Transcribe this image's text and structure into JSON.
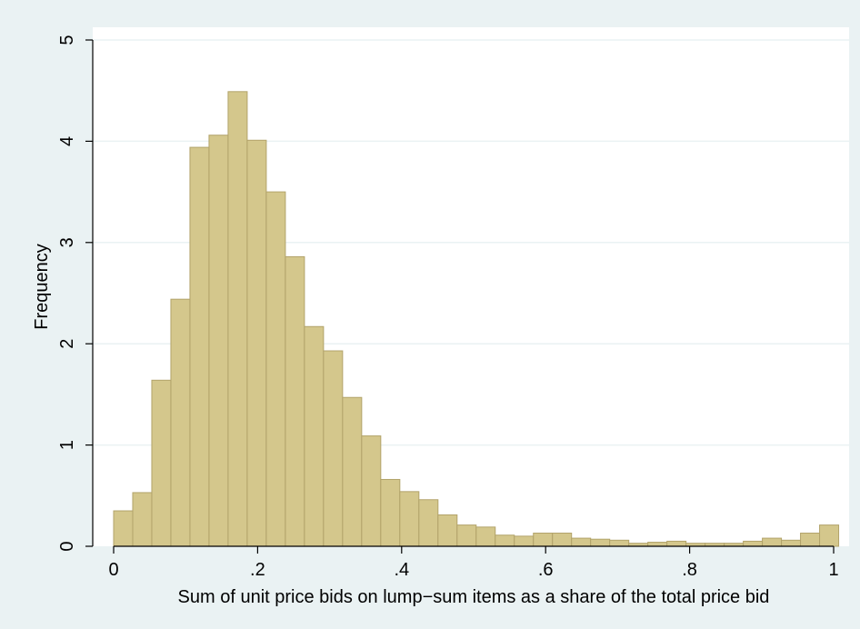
{
  "colors": {
    "page_background": "#eaf2f3",
    "plot_background": "#ffffff",
    "bar_fill": "#d4c78c",
    "bar_stroke": "#b2a36a",
    "gridline": "#eaf2f3",
    "axis": "#000000"
  },
  "chart_data": {
    "type": "bar",
    "subtype": "histogram",
    "title": "",
    "xlabel": "Sum of unit price bids on lump−sum items as a share of the total price bid",
    "ylabel": "Frequency",
    "xlim": [
      0,
      1
    ],
    "ylim": [
      0,
      5
    ],
    "grid": true,
    "legend": "none",
    "x_ticks": [
      {
        "value": 0,
        "label": "0"
      },
      {
        "value": 0.2,
        "label": ".2"
      },
      {
        "value": 0.4,
        "label": ".4"
      },
      {
        "value": 0.6,
        "label": ".6"
      },
      {
        "value": 0.8,
        "label": ".8"
      },
      {
        "value": 1,
        "label": "1"
      }
    ],
    "y_ticks": [
      {
        "value": 0,
        "label": "0"
      },
      {
        "value": 1,
        "label": "1"
      },
      {
        "value": 2,
        "label": "2"
      },
      {
        "value": 3,
        "label": "3"
      },
      {
        "value": 4,
        "label": "4"
      },
      {
        "value": 5,
        "label": "5"
      }
    ],
    "bin_width": 0.0265,
    "bin_start": 0,
    "values": [
      0.35,
      0.53,
      1.64,
      2.44,
      3.94,
      4.06,
      4.49,
      4.01,
      3.5,
      2.86,
      2.17,
      1.93,
      1.47,
      1.09,
      0.66,
      0.54,
      0.46,
      0.31,
      0.21,
      0.19,
      0.11,
      0.1,
      0.13,
      0.13,
      0.08,
      0.07,
      0.06,
      0.03,
      0.04,
      0.05,
      0.03,
      0.03,
      0.03,
      0.05,
      0.08,
      0.06,
      0.13,
      0.21
    ]
  }
}
